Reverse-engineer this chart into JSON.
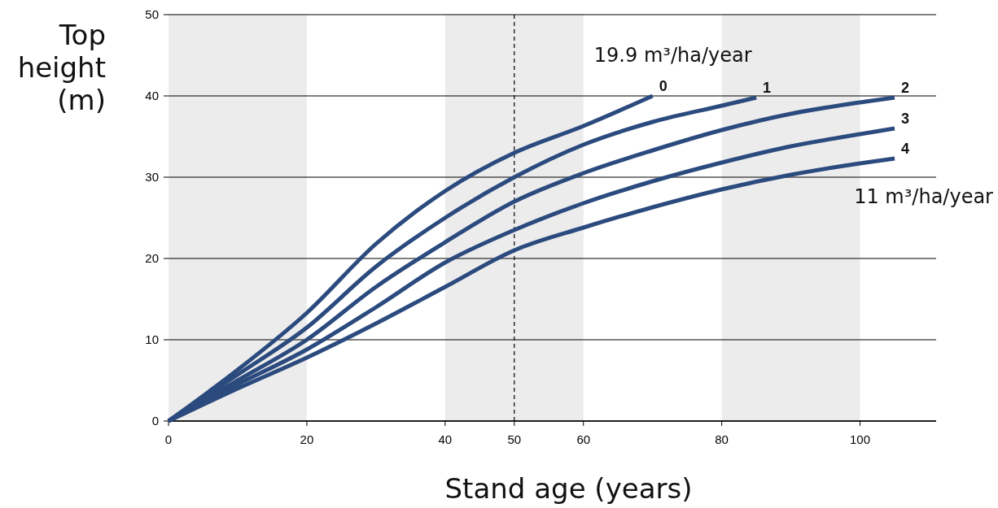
{
  "chart_data": {
    "type": "line",
    "xlabel": "Stand age (years)",
    "ylabel": "Top height (m)",
    "xlim": [
      0,
      111
    ],
    "ylim": [
      0,
      50
    ],
    "xticks": [
      0,
      20,
      40,
      50,
      60,
      80,
      100
    ],
    "yticks": [
      0,
      10,
      20,
      30,
      40,
      50
    ],
    "grid": "y",
    "marker": "none",
    "line_style": "solid",
    "bands": [
      {
        "axis": "x",
        "from": 0,
        "to": 20,
        "color": "#ececec"
      },
      {
        "axis": "x",
        "from": 40,
        "to": 60,
        "color": "#ececec"
      },
      {
        "axis": "x",
        "from": 80,
        "to": 100,
        "color": "#ececec"
      }
    ],
    "ref_lines": [
      {
        "axis": "x",
        "value": 50,
        "color": "#000000",
        "line_style": "dashed"
      }
    ],
    "annotations": [
      "19.9 m³/ha/year",
      "11 m³/ha/year"
    ],
    "series": [
      {
        "name": "0",
        "color": "#2b4a7e",
        "x": [
          0,
          10,
          20,
          30,
          40,
          50,
          60,
          70
        ],
        "values": [
          0,
          6.3,
          13.3,
          21.8,
          28.3,
          33,
          36.3,
          40
        ]
      },
      {
        "name": "1",
        "color": "#2b4a7e",
        "x": [
          0,
          10,
          20,
          30,
          40,
          50,
          60,
          70,
          80,
          85
        ],
        "values": [
          0,
          5.7,
          11.5,
          19,
          25,
          30,
          34,
          36.8,
          38.8,
          39.8
        ]
      },
      {
        "name": "2",
        "color": "#2b4a7e",
        "x": [
          0,
          10,
          20,
          30,
          40,
          50,
          60,
          70,
          80,
          90,
          100,
          105
        ],
        "values": [
          0,
          5,
          10,
          16.5,
          22,
          27,
          30.5,
          33.3,
          35.8,
          37.8,
          39.2,
          39.8
        ]
      },
      {
        "name": "3",
        "color": "#2b4a7e",
        "x": [
          0,
          10,
          20,
          30,
          40,
          50,
          60,
          70,
          80,
          90,
          100,
          105
        ],
        "values": [
          0,
          4.5,
          8.8,
          14,
          19.5,
          23.5,
          26.8,
          29.5,
          31.8,
          33.8,
          35.3,
          36
        ]
      },
      {
        "name": "4",
        "color": "#2b4a7e",
        "x": [
          0,
          10,
          20,
          30,
          40,
          50,
          60,
          70,
          80,
          90,
          100,
          105
        ],
        "values": [
          0,
          4,
          7.8,
          12,
          16.5,
          21,
          23.8,
          26.3,
          28.5,
          30.3,
          31.7,
          32.3
        ]
      }
    ]
  }
}
